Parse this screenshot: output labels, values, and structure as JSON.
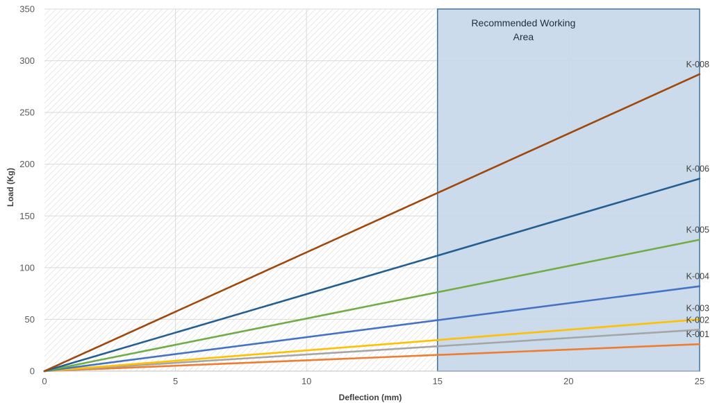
{
  "chart_data": {
    "type": "line",
    "xlabel": "Deflection (mm)",
    "ylabel": "Load (Kg)",
    "xlim": [
      0,
      25
    ],
    "ylim": [
      0,
      350
    ],
    "x_ticks": [
      0,
      5,
      10,
      15,
      20,
      25
    ],
    "y_ticks": [
      0,
      50,
      100,
      150,
      200,
      250,
      300,
      350
    ],
    "grid": true,
    "legend": "none (series labelled at right end of lines)",
    "x": [
      0,
      25
    ],
    "series": [
      {
        "name": "K-001",
        "values": [
          0,
          26
        ],
        "color": "#ed7d31"
      },
      {
        "name": "K-002",
        "values": [
          0,
          40
        ],
        "color": "#a5a5a5"
      },
      {
        "name": "K-003",
        "values": [
          0,
          50
        ],
        "color": "#ffc000"
      },
      {
        "name": "K-004",
        "values": [
          0,
          82
        ],
        "color": "#4472c4"
      },
      {
        "name": "K-005",
        "values": [
          0,
          127
        ],
        "color": "#70ad47"
      },
      {
        "name": "K-006",
        "values": [
          0,
          186
        ],
        "color": "#255e91"
      },
      {
        "name": "K-008",
        "values": [
          0,
          287
        ],
        "color": "#9e480e"
      }
    ],
    "highlight_region": {
      "label_lines": [
        "Recommended Working",
        "Area"
      ],
      "x_range": [
        15,
        25
      ],
      "y_range": [
        0,
        350
      ],
      "fill": "#c5d7ea",
      "stroke": "#41719c"
    },
    "hatched_region": {
      "x_range": [
        0,
        15
      ]
    }
  }
}
